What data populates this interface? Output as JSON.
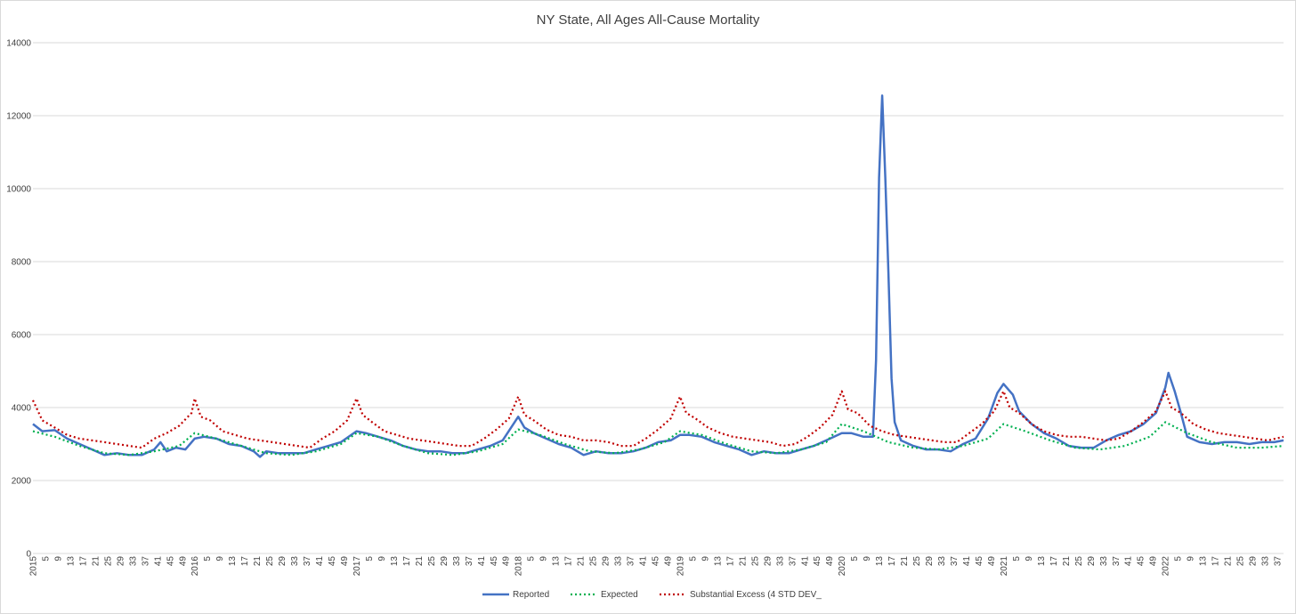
{
  "chart_data": {
    "type": "line",
    "title": "NY State, All Ages All-Cause Mortality",
    "ylim": [
      0,
      14000
    ],
    "y_ticks": [
      0,
      2000,
      4000,
      6000,
      8000,
      10000,
      12000,
      14000
    ],
    "x_unit": "week",
    "x_range": [
      "2015-W1",
      "2022-W39"
    ],
    "x_tick_step_weeks": 4,
    "year_labels": [
      "2015",
      "2016",
      "2017",
      "2018",
      "2019",
      "2020",
      "2021",
      "2022"
    ],
    "grid": "horizontal",
    "legend_position": "bottom",
    "series": [
      {
        "name": "Reported",
        "color": "#4472c4",
        "style": "solid",
        "points": [
          [
            "2015-W1",
            3550
          ],
          [
            "2015-W4",
            3350
          ],
          [
            "2015-W8",
            3380
          ],
          [
            "2015-W12",
            3150
          ],
          [
            "2015-W16",
            3000
          ],
          [
            "2015-W20",
            2850
          ],
          [
            "2015-W24",
            2700
          ],
          [
            "2015-W28",
            2750
          ],
          [
            "2015-W32",
            2700
          ],
          [
            "2015-W36",
            2700
          ],
          [
            "2015-W40",
            2850
          ],
          [
            "2015-W42",
            3050
          ],
          [
            "2015-W44",
            2800
          ],
          [
            "2015-W47",
            2900
          ],
          [
            "2015-W50",
            2850
          ],
          [
            "2016-W1",
            3150
          ],
          [
            "2016-W4",
            3200
          ],
          [
            "2016-W8",
            3150
          ],
          [
            "2016-W12",
            3000
          ],
          [
            "2016-W16",
            2950
          ],
          [
            "2016-W20",
            2800
          ],
          [
            "2016-W22",
            2650
          ],
          [
            "2016-W24",
            2800
          ],
          [
            "2016-W28",
            2750
          ],
          [
            "2016-W32",
            2750
          ],
          [
            "2016-W36",
            2750
          ],
          [
            "2016-W40",
            2850
          ],
          [
            "2016-W44",
            2950
          ],
          [
            "2016-W48",
            3050
          ],
          [
            "2017-W1",
            3350
          ],
          [
            "2017-W4",
            3300
          ],
          [
            "2017-W8",
            3200
          ],
          [
            "2017-W12",
            3100
          ],
          [
            "2017-W16",
            2950
          ],
          [
            "2017-W20",
            2850
          ],
          [
            "2017-W24",
            2800
          ],
          [
            "2017-W28",
            2800
          ],
          [
            "2017-W32",
            2750
          ],
          [
            "2017-W36",
            2750
          ],
          [
            "2017-W40",
            2850
          ],
          [
            "2017-W44",
            2950
          ],
          [
            "2017-W48",
            3100
          ],
          [
            "2018-W1",
            3750
          ],
          [
            "2018-W3",
            3450
          ],
          [
            "2018-W6",
            3300
          ],
          [
            "2018-W10",
            3150
          ],
          [
            "2018-W14",
            3000
          ],
          [
            "2018-W18",
            2900
          ],
          [
            "2018-W22",
            2700
          ],
          [
            "2018-W26",
            2800
          ],
          [
            "2018-W30",
            2750
          ],
          [
            "2018-W34",
            2750
          ],
          [
            "2018-W38",
            2800
          ],
          [
            "2018-W42",
            2900
          ],
          [
            "2018-W46",
            3050
          ],
          [
            "2018-W50",
            3100
          ],
          [
            "2019-W1",
            3250
          ],
          [
            "2019-W4",
            3250
          ],
          [
            "2019-W8",
            3200
          ],
          [
            "2019-W12",
            3050
          ],
          [
            "2019-W16",
            2950
          ],
          [
            "2019-W20",
            2850
          ],
          [
            "2019-W24",
            2700
          ],
          [
            "2019-W28",
            2800
          ],
          [
            "2019-W32",
            2750
          ],
          [
            "2019-W36",
            2750
          ],
          [
            "2019-W40",
            2850
          ],
          [
            "2019-W44",
            2950
          ],
          [
            "2019-W48",
            3100
          ],
          [
            "2020-W1",
            3300
          ],
          [
            "2020-W4",
            3300
          ],
          [
            "2020-W8",
            3200
          ],
          [
            "2020-W11",
            3200
          ],
          [
            "2020-W12",
            5300
          ],
          [
            "2020-W13",
            10300
          ],
          [
            "2020-W14",
            12550
          ],
          [
            "2020-W15",
            10300
          ],
          [
            "2020-W16",
            7700
          ],
          [
            "2020-W17",
            4800
          ],
          [
            "2020-W18",
            3600
          ],
          [
            "2020-W20",
            3100
          ],
          [
            "2020-W24",
            2950
          ],
          [
            "2020-W28",
            2850
          ],
          [
            "2020-W32",
            2850
          ],
          [
            "2020-W36",
            2800
          ],
          [
            "2020-W40",
            3000
          ],
          [
            "2020-W44",
            3150
          ],
          [
            "2020-W48",
            3700
          ],
          [
            "2020-W51",
            4400
          ],
          [
            "2021-W1",
            4650
          ],
          [
            "2021-W4",
            4350
          ],
          [
            "2021-W6",
            3900
          ],
          [
            "2021-W10",
            3550
          ],
          [
            "2021-W14",
            3300
          ],
          [
            "2021-W18",
            3150
          ],
          [
            "2021-W22",
            2950
          ],
          [
            "2021-W26",
            2900
          ],
          [
            "2021-W30",
            2900
          ],
          [
            "2021-W34",
            3100
          ],
          [
            "2021-W38",
            3250
          ],
          [
            "2021-W42",
            3350
          ],
          [
            "2021-W46",
            3550
          ],
          [
            "2021-W50",
            3850
          ],
          [
            "2022-W1",
            4550
          ],
          [
            "2022-W2",
            4950
          ],
          [
            "2022-W4",
            4450
          ],
          [
            "2022-W6",
            3850
          ],
          [
            "2022-W8",
            3200
          ],
          [
            "2022-W12",
            3050
          ],
          [
            "2022-W16",
            3000
          ],
          [
            "2022-W20",
            3050
          ],
          [
            "2022-W24",
            3050
          ],
          [
            "2022-W28",
            3000
          ],
          [
            "2022-W32",
            3050
          ],
          [
            "2022-W36",
            3050
          ],
          [
            "2022-W39",
            3100
          ]
        ]
      },
      {
        "name": "Expected",
        "color": "#00b050",
        "style": "dotted",
        "points": [
          [
            "2015-W1",
            3350
          ],
          [
            "2015-W8",
            3200
          ],
          [
            "2015-W16",
            2950
          ],
          [
            "2015-W24",
            2750
          ],
          [
            "2015-W32",
            2700
          ],
          [
            "2015-W40",
            2800
          ],
          [
            "2015-W48",
            2950
          ],
          [
            "2016-W1",
            3300
          ],
          [
            "2016-W8",
            3150
          ],
          [
            "2016-W16",
            2950
          ],
          [
            "2016-W24",
            2750
          ],
          [
            "2016-W32",
            2700
          ],
          [
            "2016-W40",
            2800
          ],
          [
            "2016-W48",
            3000
          ],
          [
            "2017-W1",
            3300
          ],
          [
            "2017-W8",
            3200
          ],
          [
            "2017-W16",
            2950
          ],
          [
            "2017-W24",
            2750
          ],
          [
            "2017-W32",
            2700
          ],
          [
            "2017-W40",
            2800
          ],
          [
            "2017-W48",
            3000
          ],
          [
            "2018-W1",
            3400
          ],
          [
            "2018-W8",
            3250
          ],
          [
            "2018-W16",
            3000
          ],
          [
            "2018-W24",
            2800
          ],
          [
            "2018-W32",
            2750
          ],
          [
            "2018-W40",
            2850
          ],
          [
            "2018-W48",
            3050
          ],
          [
            "2019-W1",
            3350
          ],
          [
            "2019-W8",
            3250
          ],
          [
            "2019-W16",
            3000
          ],
          [
            "2019-W24",
            2800
          ],
          [
            "2019-W32",
            2750
          ],
          [
            "2019-W40",
            2850
          ],
          [
            "2019-W48",
            3050
          ],
          [
            "2020-W1",
            3550
          ],
          [
            "2020-W8",
            3350
          ],
          [
            "2020-W16",
            3050
          ],
          [
            "2020-W24",
            2900
          ],
          [
            "2020-W32",
            2850
          ],
          [
            "2020-W40",
            2950
          ],
          [
            "2020-W48",
            3150
          ],
          [
            "2021-W1",
            3550
          ],
          [
            "2021-W8",
            3350
          ],
          [
            "2021-W16",
            3100
          ],
          [
            "2021-W24",
            2900
          ],
          [
            "2021-W32",
            2850
          ],
          [
            "2021-W40",
            2950
          ],
          [
            "2021-W48",
            3200
          ],
          [
            "2022-W1",
            3600
          ],
          [
            "2022-W8",
            3300
          ],
          [
            "2022-W16",
            3050
          ],
          [
            "2022-W24",
            2900
          ],
          [
            "2022-W32",
            2900
          ],
          [
            "2022-W39",
            2950
          ]
        ]
      },
      {
        "name": "Substantial Excess (4 STD DEV_",
        "color": "#c00000",
        "style": "dotted",
        "points": [
          [
            "2015-W1",
            4200
          ],
          [
            "2015-W4",
            3650
          ],
          [
            "2015-W8",
            3450
          ],
          [
            "2015-W12",
            3250
          ],
          [
            "2015-W16",
            3150
          ],
          [
            "2015-W20",
            3100
          ],
          [
            "2015-W24",
            3050
          ],
          [
            "2015-W28",
            3000
          ],
          [
            "2015-W32",
            2950
          ],
          [
            "2015-W36",
            2900
          ],
          [
            "2015-W40",
            3150
          ],
          [
            "2015-W44",
            3300
          ],
          [
            "2015-W48",
            3500
          ],
          [
            "2015-W52",
            3850
          ],
          [
            "2016-W1",
            4250
          ],
          [
            "2016-W3",
            3750
          ],
          [
            "2016-W6",
            3650
          ],
          [
            "2016-W10",
            3350
          ],
          [
            "2016-W14",
            3250
          ],
          [
            "2016-W18",
            3150
          ],
          [
            "2016-W22",
            3100
          ],
          [
            "2016-W26",
            3050
          ],
          [
            "2016-W30",
            3000
          ],
          [
            "2016-W34",
            2950
          ],
          [
            "2016-W38",
            2900
          ],
          [
            "2016-W42",
            3150
          ],
          [
            "2016-W46",
            3350
          ],
          [
            "2016-W50",
            3650
          ],
          [
            "2017-W1",
            4250
          ],
          [
            "2017-W3",
            3800
          ],
          [
            "2017-W6",
            3600
          ],
          [
            "2017-W10",
            3350
          ],
          [
            "2017-W14",
            3250
          ],
          [
            "2017-W18",
            3150
          ],
          [
            "2017-W22",
            3100
          ],
          [
            "2017-W26",
            3050
          ],
          [
            "2017-W30",
            3000
          ],
          [
            "2017-W34",
            2950
          ],
          [
            "2017-W38",
            2950
          ],
          [
            "2017-W42",
            3150
          ],
          [
            "2017-W46",
            3400
          ],
          [
            "2017-W50",
            3700
          ],
          [
            "2018-W1",
            4300
          ],
          [
            "2018-W3",
            3800
          ],
          [
            "2018-W6",
            3650
          ],
          [
            "2018-W10",
            3400
          ],
          [
            "2018-W14",
            3250
          ],
          [
            "2018-W18",
            3200
          ],
          [
            "2018-W22",
            3100
          ],
          [
            "2018-W26",
            3100
          ],
          [
            "2018-W30",
            3050
          ],
          [
            "2018-W34",
            2950
          ],
          [
            "2018-W38",
            2950
          ],
          [
            "2018-W42",
            3150
          ],
          [
            "2018-W46",
            3400
          ],
          [
            "2018-W50",
            3700
          ],
          [
            "2019-W1",
            4300
          ],
          [
            "2019-W3",
            3850
          ],
          [
            "2019-W6",
            3700
          ],
          [
            "2019-W10",
            3450
          ],
          [
            "2019-W14",
            3300
          ],
          [
            "2019-W18",
            3200
          ],
          [
            "2019-W22",
            3150
          ],
          [
            "2019-W26",
            3100
          ],
          [
            "2019-W30",
            3050
          ],
          [
            "2019-W34",
            2950
          ],
          [
            "2019-W38",
            3000
          ],
          [
            "2019-W42",
            3200
          ],
          [
            "2019-W46",
            3450
          ],
          [
            "2019-W50",
            3800
          ],
          [
            "2020-W1",
            4450
          ],
          [
            "2020-W3",
            3950
          ],
          [
            "2020-W6",
            3850
          ],
          [
            "2020-W10",
            3500
          ],
          [
            "2020-W14",
            3350
          ],
          [
            "2020-W18",
            3250
          ],
          [
            "2020-W22",
            3200
          ],
          [
            "2020-W26",
            3150
          ],
          [
            "2020-W30",
            3100
          ],
          [
            "2020-W34",
            3050
          ],
          [
            "2020-W38",
            3050
          ],
          [
            "2020-W42",
            3300
          ],
          [
            "2020-W46",
            3550
          ],
          [
            "2020-W50",
            3900
          ],
          [
            "2021-W1",
            4450
          ],
          [
            "2021-W3",
            4000
          ],
          [
            "2021-W6",
            3850
          ],
          [
            "2021-W10",
            3550
          ],
          [
            "2021-W14",
            3350
          ],
          [
            "2021-W18",
            3250
          ],
          [
            "2021-W22",
            3200
          ],
          [
            "2021-W26",
            3200
          ],
          [
            "2021-W30",
            3150
          ],
          [
            "2021-W34",
            3100
          ],
          [
            "2021-W38",
            3150
          ],
          [
            "2021-W42",
            3350
          ],
          [
            "2021-W46",
            3600
          ],
          [
            "2021-W50",
            3900
          ],
          [
            "2022-W1",
            4450
          ],
          [
            "2022-W3",
            4000
          ],
          [
            "2022-W6",
            3850
          ],
          [
            "2022-W10",
            3550
          ],
          [
            "2022-W14",
            3400
          ],
          [
            "2022-W18",
            3300
          ],
          [
            "2022-W22",
            3250
          ],
          [
            "2022-W26",
            3200
          ],
          [
            "2022-W30",
            3150
          ],
          [
            "2022-W34",
            3100
          ],
          [
            "2022-W39",
            3200
          ]
        ]
      }
    ]
  }
}
